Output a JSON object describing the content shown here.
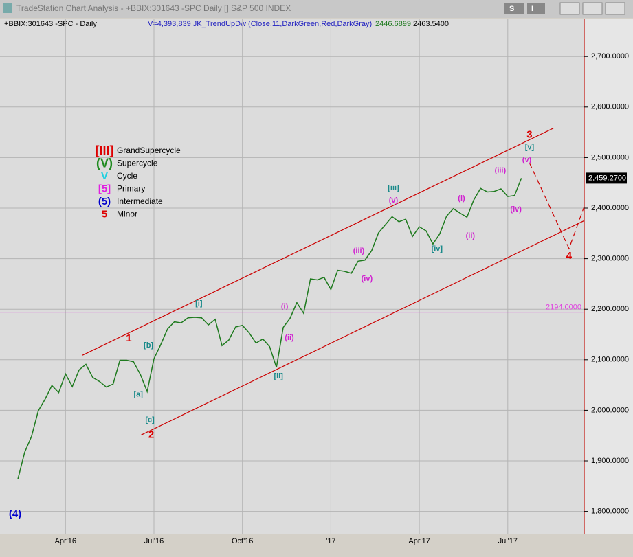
{
  "window": {
    "title": "TradeStation Chart Analysis - +BBIX:301643 -SPC Daily [] S&P 500 INDEX",
    "buttons": [
      "S",
      "I"
    ]
  },
  "chart_data": {
    "type": "line",
    "symbol": "+BBIX:301643 -SPC - Daily",
    "indicator": "V=4,393,839  JK_TrendUpDw (Close,11,DarkGreen,Red,DarkGray)",
    "indicator_values": [
      "2446.6899",
      "2463.5400"
    ],
    "categories": [
      null,
      null,
      null,
      null,
      null,
      null,
      null,
      "Apr'16",
      null,
      null,
      null,
      null,
      null,
      null,
      null,
      null,
      null,
      null,
      null,
      null,
      "Jul'16",
      null,
      null,
      null,
      null,
      null,
      null,
      null,
      null,
      null,
      null,
      null,
      null,
      "Oct'16",
      null,
      null,
      null,
      null,
      null,
      null,
      null,
      null,
      null,
      null,
      null,
      null,
      "'17",
      null,
      null,
      null,
      null,
      null,
      null,
      null,
      null,
      null,
      null,
      null,
      null,
      "Apr'17",
      null,
      null,
      null,
      null,
      null,
      null,
      null,
      null,
      null,
      null,
      null,
      null,
      "Jul'17",
      null,
      null,
      null,
      null,
      null,
      null,
      null,
      null,
      null,
      null,
      null
    ],
    "series": [
      {
        "name": "SPC",
        "color": "#1e7a1e",
        "values": [
          1864,
          1917,
          1948,
          1999,
          2022,
          2049,
          2035,
          2072,
          2047,
          2080,
          2091,
          2065,
          2057,
          2046,
          2052,
          2099,
          2099,
          2096,
          2071,
          2037,
          2102,
          2130,
          2161,
          2175,
          2173,
          2183,
          2184,
          2183,
          2169,
          2180,
          2128,
          2139,
          2165,
          2168,
          2153,
          2133,
          2141,
          2126,
          2085,
          2164,
          2182,
          2213,
          2192,
          2260,
          2258,
          2263,
          2239,
          2277,
          2275,
          2271,
          2295,
          2297,
          2316,
          2351,
          2367,
          2383,
          2373,
          2378,
          2344,
          2363,
          2355,
          2329,
          2349,
          2384,
          2399,
          2390,
          2382,
          2416,
          2439,
          2432,
          2433,
          2438,
          2423,
          2425,
          2459.27,
          null,
          null,
          null,
          null,
          null,
          null,
          null,
          null,
          null
        ]
      }
    ],
    "ylim": [
      1756,
      2775
    ],
    "yticks": [
      {
        "value": 1800,
        "label": "1,800.0000"
      },
      {
        "value": 1900,
        "label": "1,900.0000"
      },
      {
        "value": 2000,
        "label": "2,000.0000"
      },
      {
        "value": 2100,
        "label": "2,100.0000"
      },
      {
        "value": 2200,
        "label": "2,200.0000"
      },
      {
        "value": 2300,
        "label": "2,300.0000"
      },
      {
        "value": 2400,
        "label": "2,400.0000"
      },
      {
        "value": 2500,
        "label": "2,500.0000"
      },
      {
        "value": 2600,
        "label": "2,600.0000"
      },
      {
        "value": 2700,
        "label": "2,700.0000"
      }
    ],
    "grid": true,
    "last": {
      "value": 2459.27,
      "label": "2,459.2700"
    },
    "hline": {
      "value": 2194,
      "label": "2194.0000",
      "color": "#e040e0"
    },
    "trendlines": [
      {
        "color": "#cc0000",
        "dashed": false,
        "points": [
          [
            9.5,
            2109
          ],
          [
            78.7,
            2558
          ]
        ]
      },
      {
        "color": "#cc0000",
        "dashed": false,
        "points": [
          [
            18.1,
            1951
          ],
          [
            83.2,
            2375
          ]
        ]
      },
      {
        "color": "#cc0000",
        "dashed": true,
        "points": [
          [
            75.2,
            2489
          ],
          [
            81,
            2320
          ],
          [
            83.2,
            2402
          ]
        ]
      }
    ],
    "annotations": [
      {
        "text": "(4)",
        "x": -0.4,
        "y": 1794,
        "color": "#0000cc"
      },
      {
        "text": "1",
        "x": 16.3,
        "y": 2142,
        "color": "#dd0000"
      },
      {
        "text": "2",
        "x": 19.6,
        "y": 1951,
        "color": "#dd0000"
      },
      {
        "text": "3",
        "x": 75.2,
        "y": 2545,
        "color": "#dd0000"
      },
      {
        "text": "4",
        "x": 81,
        "y": 2305,
        "color": "#dd0000"
      },
      {
        "text": "[a]",
        "x": 17.7,
        "y": 2031,
        "color": "#1a8a8a"
      },
      {
        "text": "[b]",
        "x": 19.2,
        "y": 2128,
        "color": "#1a8a8a"
      },
      {
        "text": "[c]",
        "x": 19.4,
        "y": 1981,
        "color": "#1a8a8a"
      },
      {
        "text": "[i]",
        "x": 26.6,
        "y": 2211,
        "color": "#1a8a8a"
      },
      {
        "text": "[ii]",
        "x": 38.3,
        "y": 2067,
        "color": "#1a8a8a"
      },
      {
        "text": "[iii]",
        "x": 55.2,
        "y": 2439,
        "color": "#1a8a8a"
      },
      {
        "text": "[iv]",
        "x": 61.6,
        "y": 2319,
        "color": "#1a8a8a"
      },
      {
        "text": "[v]",
        "x": 75.2,
        "y": 2520,
        "color": "#1a8a8a"
      },
      {
        "text": "(i)",
        "x": 39.2,
        "y": 2205,
        "color": "#d020d0"
      },
      {
        "text": "(ii)",
        "x": 39.9,
        "y": 2143,
        "color": "#d020d0"
      },
      {
        "text": "(iii)",
        "x": 50.1,
        "y": 2315,
        "color": "#d020d0"
      },
      {
        "text": "(iv)",
        "x": 51.3,
        "y": 2260,
        "color": "#d020d0"
      },
      {
        "text": "(v)",
        "x": 55.2,
        "y": 2415,
        "color": "#d020d0"
      },
      {
        "text": "(i)",
        "x": 65.2,
        "y": 2419,
        "color": "#d020d0"
      },
      {
        "text": "(ii)",
        "x": 66.5,
        "y": 2345,
        "color": "#d020d0"
      },
      {
        "text": "(iii)",
        "x": 70.9,
        "y": 2474,
        "color": "#d020d0"
      },
      {
        "text": "(iv)",
        "x": 73.2,
        "y": 2397,
        "color": "#d020d0"
      },
      {
        "text": "(v)",
        "x": 74.8,
        "y": 2495,
        "color": "#d020d0"
      }
    ],
    "wave_legend": [
      {
        "symbol": "[III]",
        "name": "GrandSupercycle",
        "color": "#dd0000"
      },
      {
        "symbol": "(V)",
        "name": "Supercycle",
        "color": "#1e8a1e"
      },
      {
        "symbol": "V",
        "name": "Cycle",
        "color": "#20d0e0"
      },
      {
        "symbol": "[5]",
        "name": "Primary",
        "color": "#e020e0"
      },
      {
        "symbol": "(5)",
        "name": "Intermediate",
        "color": "#0000cc"
      },
      {
        "symbol": "5",
        "name": "Minor",
        "color": "#dd0000"
      }
    ]
  }
}
